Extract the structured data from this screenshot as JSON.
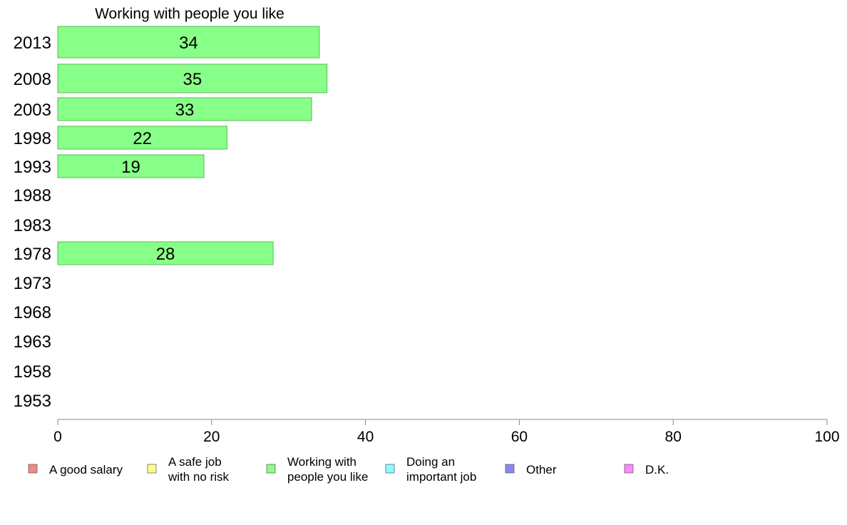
{
  "chart_data": {
    "type": "bar",
    "orientation": "horizontal",
    "title": "Working with people you like",
    "categories": [
      "2013",
      "2008",
      "2003",
      "1998",
      "1993",
      "1988",
      "1983",
      "1978",
      "1973",
      "1968",
      "1963",
      "1958",
      "1953"
    ],
    "values": [
      34,
      35,
      33,
      22,
      19,
      null,
      null,
      28,
      null,
      null,
      null,
      null,
      null
    ],
    "bar_color": "#88ff88",
    "bar_border": "#55bb55",
    "xlim": [
      0,
      100
    ],
    "xticks": [
      "0",
      "20",
      "40",
      "60",
      "80",
      "100"
    ],
    "grid": false,
    "legend_position": "bottom",
    "legend": [
      {
        "lines": [
          "A good salary"
        ],
        "color": "#f08888"
      },
      {
        "lines": [
          "A safe job",
          "with no risk"
        ],
        "color": "#ffff88"
      },
      {
        "lines": [
          "Working with",
          "people you like"
        ],
        "color": "#88ff88"
      },
      {
        "lines": [
          "Doing an",
          "important job"
        ],
        "color": "#88ffff"
      },
      {
        "lines": [
          "Other"
        ],
        "color": "#8888ee"
      },
      {
        "lines": [
          "D.K."
        ],
        "color": "#ff88ff"
      }
    ]
  }
}
